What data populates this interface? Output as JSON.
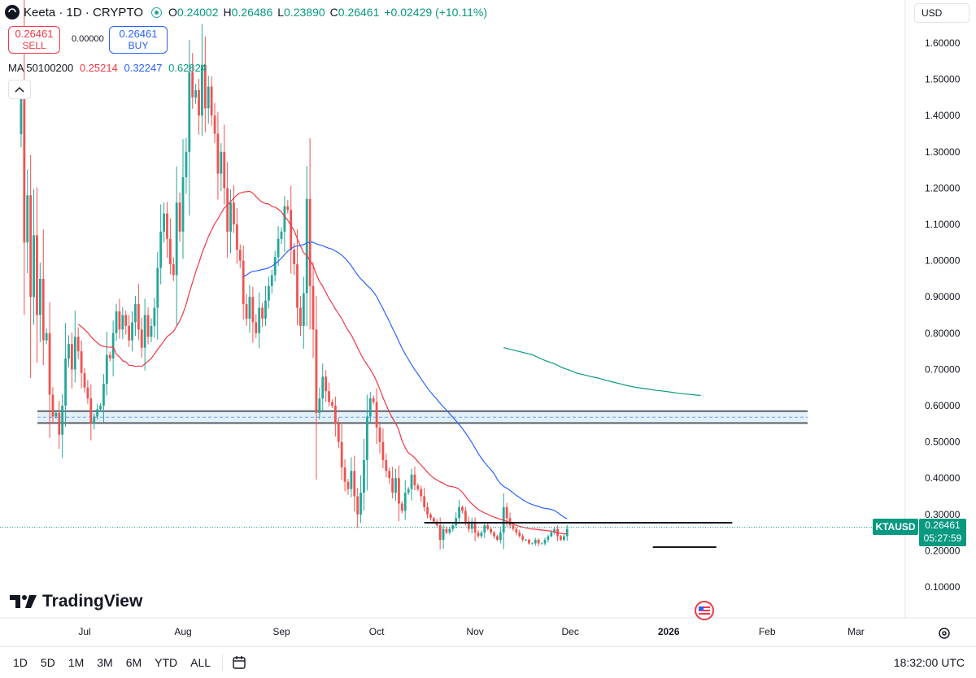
{
  "header": {
    "symbol": "Keeta · 1D · CRYPTO",
    "open_key": "O",
    "open": "0.24002",
    "high_key": "H",
    "high": "0.26486",
    "low_key": "L",
    "low": "0.23890",
    "close_key": "C",
    "close": "0.26461",
    "change": "+0.02429 (+10.11%)"
  },
  "trade": {
    "sell_price": "0.26461",
    "sell_label": "SELL",
    "spread": "0.00000",
    "buy_price": "0.26461",
    "buy_label": "BUY"
  },
  "ma_legend": {
    "label": "MA 50100200",
    "ma50": "0.25214",
    "ma100": "0.32247",
    "ma200": "0.62824",
    "colors": {
      "ma50": "#f23645",
      "ma100": "#2962ff",
      "ma200": "#089981"
    }
  },
  "currency": "USD",
  "branding": "TradingView",
  "price_tag": {
    "symbol": "KTAUSD",
    "price": "0.26461",
    "countdown": "05:27:59",
    "color": "#089981"
  },
  "range_buttons": [
    "1D",
    "5D",
    "1M",
    "3M",
    "6M",
    "YTD",
    "ALL"
  ],
  "clock": "18:32:00 UTC",
  "colors": {
    "up": "#26a69a",
    "down": "#ef5350",
    "zone_fill": "#cfe8f3",
    "zone_border": "#5d606b"
  },
  "chart_data": {
    "type": "candlestick",
    "y_axis_labels": [
      "1.60000",
      "1.50000",
      "1.40000",
      "1.30000",
      "1.20000",
      "1.10000",
      "1.00000",
      "0.90000",
      "0.80000",
      "0.70000",
      "0.60000",
      "0.50000",
      "0.40000",
      "0.30000",
      "0.20000",
      "0.10000"
    ],
    "x_axis_labels": [
      "Jul",
      "Aug",
      "Sep",
      "Oct",
      "Nov",
      "Dec",
      "2026",
      "Feb",
      "Mar"
    ],
    "ylim": [
      0.04,
      1.68
    ],
    "date_range": [
      "2025-06-11",
      "2026-01-14"
    ],
    "closes": [
      1.45,
      1.05,
      1.18,
      0.9,
      1.07,
      0.85,
      0.95,
      0.78,
      0.8,
      0.63,
      0.57,
      0.58,
      0.52,
      0.6,
      0.73,
      0.77,
      0.7,
      0.79,
      0.75,
      0.69,
      0.65,
      0.62,
      0.55,
      0.57,
      0.59,
      0.6,
      0.66,
      0.74,
      0.73,
      0.8,
      0.86,
      0.81,
      0.85,
      0.82,
      0.78,
      0.83,
      0.88,
      0.81,
      0.76,
      0.85,
      0.79,
      0.82,
      0.87,
      0.98,
      1.08,
      1.13,
      1.06,
      0.99,
      0.96,
      1.16,
      1.08,
      1.23,
      1.3,
      1.52,
      1.45,
      1.47,
      1.4,
      1.54,
      1.42,
      1.48,
      1.4,
      1.35,
      1.24,
      1.3,
      1.2,
      1.08,
      1.16,
      1.1,
      1.03,
      1.0,
      0.88,
      0.84,
      0.9,
      0.83,
      0.8,
      0.87,
      0.84,
      0.89,
      0.93,
      0.96,
      1.01,
      1.06,
      1.08,
      1.15,
      1.14,
      1.03,
      0.99,
      0.87,
      0.82,
      0.91,
      1.17,
      0.93,
      0.81,
      0.58,
      0.62,
      0.68,
      0.64,
      0.61,
      0.6,
      0.55,
      0.5,
      0.43,
      0.39,
      0.37,
      0.42,
      0.35,
      0.3,
      0.36,
      0.45,
      0.57,
      0.62,
      0.61,
      0.54,
      0.5,
      0.45,
      0.42,
      0.4,
      0.36,
      0.4,
      0.33,
      0.31,
      0.36,
      0.37,
      0.41,
      0.38,
      0.37,
      0.35,
      0.32,
      0.3,
      0.29,
      0.28,
      0.27,
      0.23,
      0.26,
      0.25,
      0.26,
      0.27,
      0.29,
      0.32,
      0.31,
      0.28,
      0.26,
      0.28,
      0.25,
      0.24,
      0.25,
      0.27,
      0.26,
      0.25,
      0.24,
      0.23,
      0.25,
      0.32,
      0.29,
      0.27,
      0.26,
      0.25,
      0.24,
      0.23,
      0.23,
      0.22,
      0.22,
      0.23,
      0.22,
      0.22,
      0.23,
      0.24,
      0.25,
      0.26,
      0.24,
      0.23,
      0.24,
      0.26
    ],
    "ma50_start_index": 49,
    "ma100_start_index": 99,
    "ma200_start_index": 100,
    "series": [
      {
        "name": "MA 50",
        "last": 0.25214,
        "color": "#f23645"
      },
      {
        "name": "MA 100",
        "last": 0.32247,
        "color": "#2962ff"
      },
      {
        "name": "MA 200",
        "last": 0.62824,
        "color": "#089981"
      }
    ],
    "ma200_values": [
      0.76,
      0.755,
      0.75,
      0.745,
      0.74,
      0.73,
      0.722,
      0.715,
      0.705,
      0.698,
      0.69,
      0.685,
      0.68,
      0.676,
      0.67,
      0.665,
      0.66,
      0.655,
      0.651,
      0.648,
      0.645,
      0.642,
      0.64,
      0.637,
      0.634,
      0.632,
      0.63,
      0.628
    ],
    "zone": {
      "top": 0.585,
      "bottom": 0.552,
      "mid": 0.568
    },
    "support_lines": [
      {
        "y": 0.277,
        "from": "2025-10-16",
        "to": "2026-01-21"
      },
      {
        "y": 0.21,
        "from": "2025-12-27",
        "to": "2026-01-16"
      }
    ],
    "last_price": 0.26461
  }
}
